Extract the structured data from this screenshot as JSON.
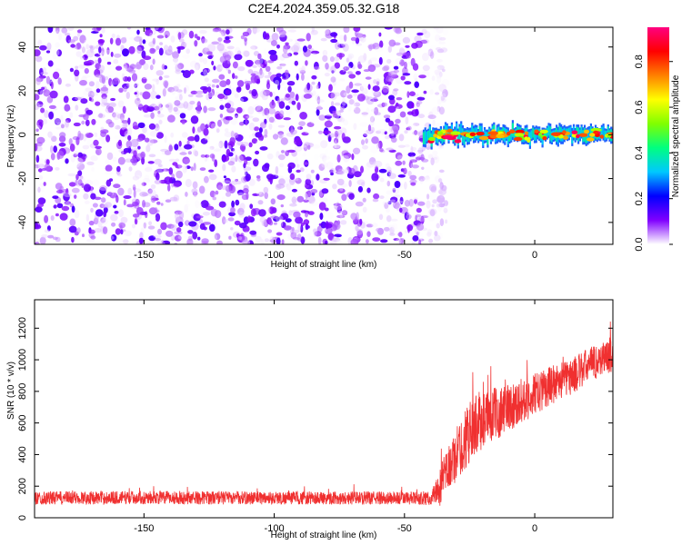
{
  "title": "C2E4.2024.359.05.32.G18",
  "chart_data": [
    {
      "type": "heatmap",
      "xlabel": "Height of straight line (km)",
      "ylabel": "Frequency (Hz)",
      "xlim": [
        -192,
        30
      ],
      "ylim": [
        -50,
        49
      ],
      "xticks": [
        -150,
        -100,
        -50,
        0
      ],
      "yticks": [
        -40,
        -20,
        0,
        20,
        40
      ],
      "description_series": [
        {
          "name": "",
          "region": "noise",
          "x_range": [
            -192,
            -42
          ],
          "y_range": [
            -50,
            49
          ],
          "amplitude_range": [
            0.0,
            0.15
          ]
        },
        {
          "name": "",
          "region": "carrier",
          "x_range": [
            -43,
            30
          ],
          "y_center": 0,
          "amplitude_range": [
            0.15,
            0.95
          ]
        }
      ],
      "colorbar": {
        "label": "Normalized spectral amplitude",
        "range": [
          0.0,
          0.95
        ],
        "ticks": [
          0.0,
          0.2,
          0.4,
          0.6,
          0.8
        ],
        "tick_labels": [
          "0.0",
          "0.2",
          "0.4",
          "0.6",
          "0.8"
        ],
        "colormap": [
          "#ffffff",
          "#8000ff",
          "#0000ff",
          "#00c8ff",
          "#00ff80",
          "#80ff00",
          "#ffff00",
          "#ff8000",
          "#ff0000",
          "#ff0080"
        ]
      },
      "grid": false
    },
    {
      "type": "line",
      "xlabel": "Height of straight line (km)",
      "ylabel": "SNR (10 * v/v)",
      "xlim": [
        -192,
        30
      ],
      "ylim": [
        0,
        1380
      ],
      "xticks": [
        -150,
        -100,
        -50,
        0
      ],
      "yticks": [
        0,
        200,
        400,
        600,
        800,
        1000,
        1200
      ],
      "color": "#f03030",
      "envelope": {
        "x": [
          -192,
          -150,
          -100,
          -60,
          -40,
          -36,
          -34,
          -32,
          -30,
          -28,
          -26,
          -24,
          -22,
          -20,
          -15,
          -10,
          -5,
          0,
          5,
          10,
          15,
          20,
          25,
          30
        ],
        "mean": [
          125,
          128,
          125,
          125,
          122,
          200,
          290,
          340,
          400,
          450,
          520,
          560,
          600,
          620,
          660,
          700,
          740,
          780,
          830,
          870,
          900,
          960,
          1000,
          1030
        ],
        "spread": [
          60,
          60,
          60,
          60,
          60,
          180,
          200,
          220,
          250,
          260,
          280,
          280,
          280,
          260,
          240,
          220,
          200,
          190,
          180,
          170,
          170,
          160,
          160,
          150
        ]
      },
      "grid": false
    }
  ]
}
